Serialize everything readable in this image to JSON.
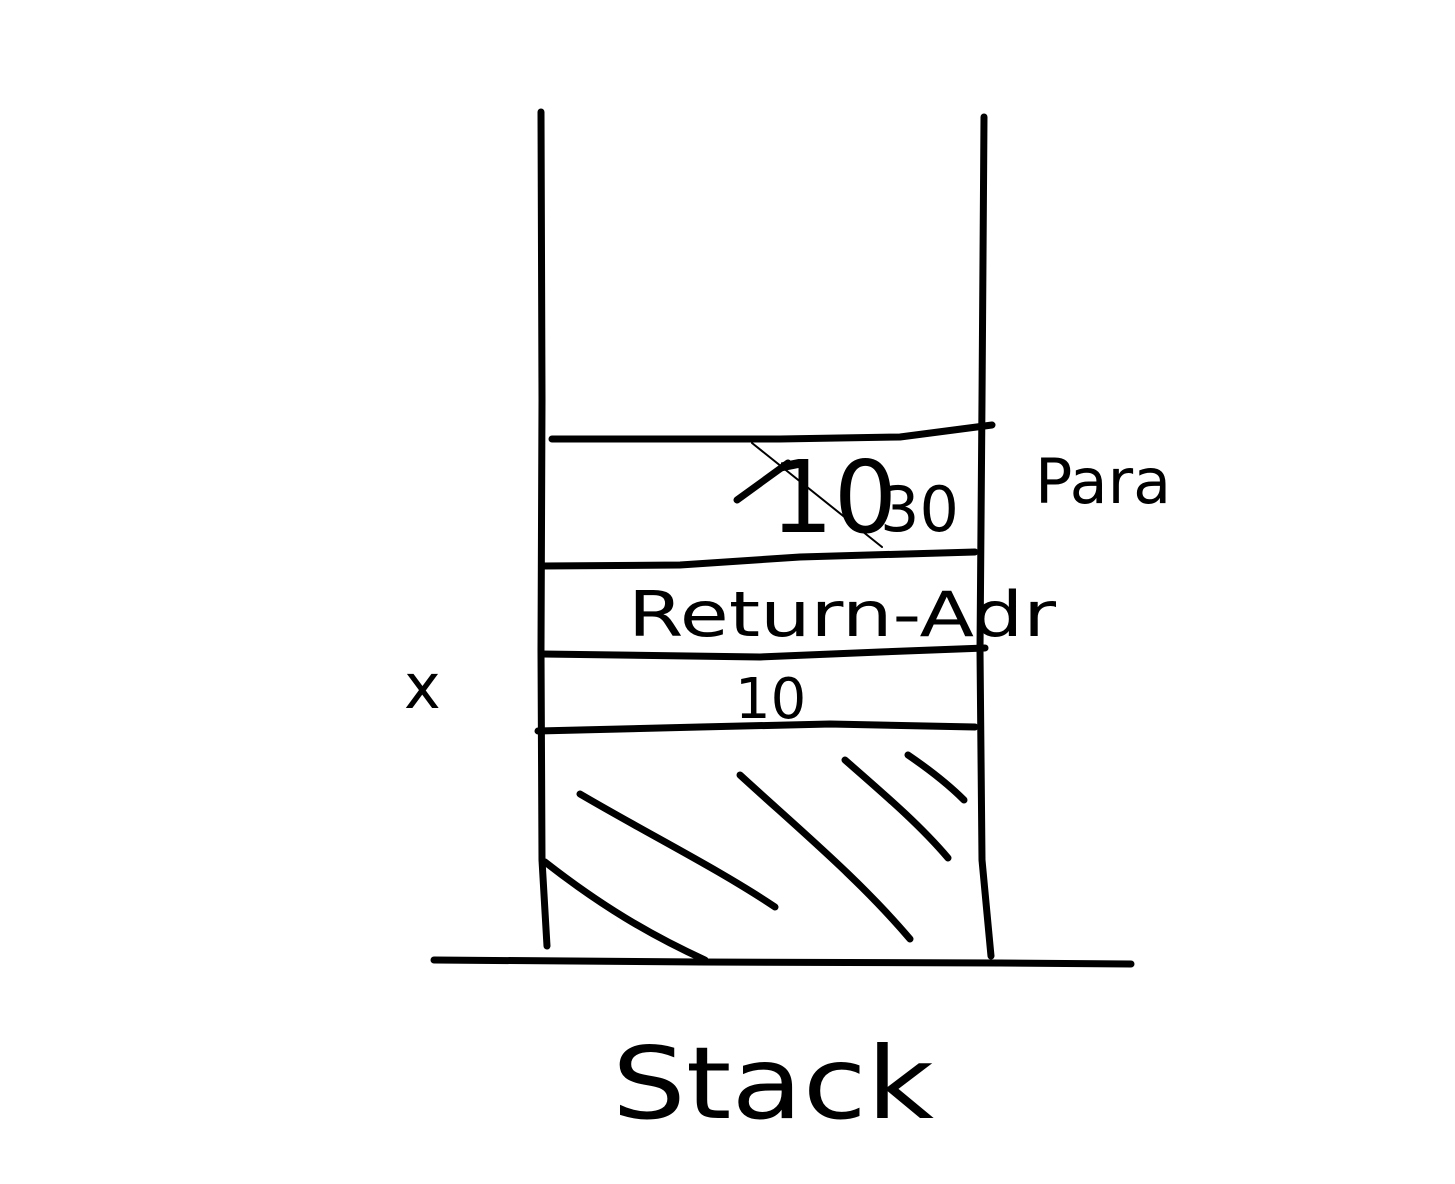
{
  "diagram": {
    "title": "Stack",
    "stack_slots": [
      {
        "id": "param",
        "values": [
          "10",
          "30"
        ],
        "strikethrough_value": "10",
        "side_label": "Para"
      },
      {
        "id": "return-address",
        "text": "Return-Adr"
      },
      {
        "id": "local-x",
        "value": "10",
        "side_label": "x"
      }
    ],
    "occupied_region": "hatched"
  }
}
